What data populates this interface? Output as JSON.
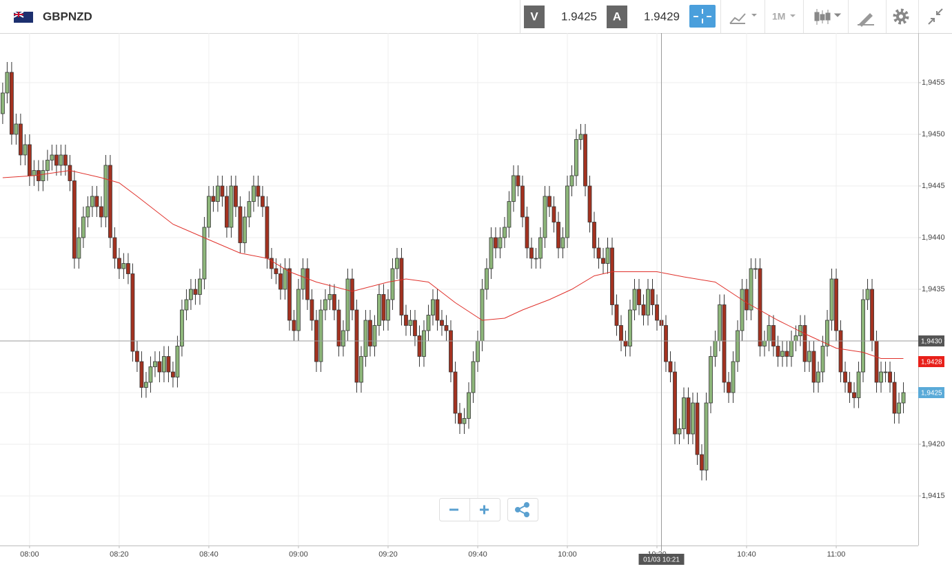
{
  "header": {
    "symbol": "GBPNZD",
    "bid": {
      "label": "V",
      "price": "1.9425"
    },
    "ask": {
      "label": "A",
      "price": "1.9429"
    },
    "timeframe": "1M"
  },
  "chart_data": {
    "type": "candlestick",
    "open": [
      1.9452,
      1.9454,
      1.9456,
      1.945,
      1.9451,
      1.9448,
      1.9449,
      1.9446,
      1.94465,
      1.94455,
      1.94465,
      1.94475,
      1.9448,
      1.9447,
      1.9448,
      1.9447,
      1.94455,
      1.9438,
      1.944,
      1.9442,
      1.9443,
      1.9444,
      1.9443,
      1.9442,
      1.9447,
      1.944,
      1.9438,
      1.9437,
      1.94375,
      1.94365,
      1.9429,
      1.9428,
      1.94255,
      1.9426,
      1.94275,
      1.9428,
      1.9427,
      1.94285,
      1.9427,
      1.94265,
      1.94295,
      1.9433,
      1.9434,
      1.9435,
      1.94345,
      1.9436,
      1.9441,
      1.9444,
      1.94435,
      1.9445,
      1.9444,
      1.9441,
      1.9445,
      1.9443,
      1.94395,
      1.9442,
      1.94435,
      1.9445,
      1.9444,
      1.9443,
      1.9438,
      1.9437,
      1.94365,
      1.9435,
      1.9437,
      1.9432,
      1.9431,
      1.9435,
      1.9437,
      1.9434,
      1.9432,
      1.9428,
      1.9433,
      1.9434,
      1.94345,
      1.9433,
      1.94295,
      1.9431,
      1.9436,
      1.9433,
      1.9426,
      1.94285,
      1.9432,
      1.94295,
      1.94315,
      1.94345,
      1.9432,
      1.9434,
      1.9437,
      1.9438,
      1.94325,
      1.94315,
      1.9432,
      1.94305,
      1.94285,
      1.9431,
      1.94325,
      1.9434,
      1.9432,
      1.94315,
      1.9431,
      1.9427,
      1.9423,
      1.9422,
      1.94225,
      1.9425,
      1.9428,
      1.943,
      1.9435,
      1.9437,
      1.944,
      1.9439,
      1.944,
      1.9441,
      1.94435,
      1.9446,
      1.9445,
      1.9442,
      1.9439,
      1.9438,
      1.9438,
      1.944,
      1.9444,
      1.9443,
      1.94415,
      1.9439,
      1.944,
      1.9445,
      1.9446,
      1.94495,
      1.945,
      1.9445,
      1.94415,
      1.9439,
      1.9438,
      1.94375,
      1.9439,
      1.94335,
      1.94315,
      1.943,
      1.94295,
      1.9433,
      1.9435,
      1.94335,
      1.94325,
      1.9435,
      1.94335,
      1.9432,
      1.94315,
      1.9428,
      1.9427,
      1.9421,
      1.94215,
      1.94245,
      1.9421,
      1.9424,
      1.9419,
      1.94175,
      1.9424,
      1.94285,
      1.943,
      1.94335,
      1.9426,
      1.9425,
      1.9428,
      1.9431,
      1.9435,
      1.9433,
      1.9437,
      1.9437,
      1.94295,
      1.943,
      1.94315,
      1.94295,
      1.94285,
      1.9429,
      1.94285,
      1.943,
      1.94305,
      1.94315,
      1.9428,
      1.9429,
      1.9426,
      1.9427,
      1.94295,
      1.9432,
      1.9436,
      1.9431,
      1.9427,
      1.9426,
      1.9425,
      1.94245,
      1.9427,
      1.9434,
      1.9435,
      1.943,
      1.9426,
      1.9427,
      1.9427,
      1.9426,
      1.9423,
      1.9424
    ],
    "high": [
      1.9455,
      1.9457,
      1.9457,
      1.9452,
      1.9452,
      1.945,
      1.945,
      1.94475,
      1.94475,
      1.94475,
      1.94485,
      1.9449,
      1.9449,
      1.9449,
      1.9449,
      1.9448,
      1.94465,
      1.9441,
      1.9443,
      1.9444,
      1.9445,
      1.9445,
      1.9444,
      1.9448,
      1.9448,
      1.9441,
      1.9439,
      1.94385,
      1.94385,
      1.94375,
      1.943,
      1.9429,
      1.9427,
      1.94285,
      1.9429,
      1.9429,
      1.94295,
      1.94295,
      1.9428,
      1.94305,
      1.9434,
      1.9435,
      1.9436,
      1.9436,
      1.9437,
      1.9442,
      1.9445,
      1.9445,
      1.9446,
      1.9446,
      1.9445,
      1.9446,
      1.9446,
      1.9444,
      1.9443,
      1.94445,
      1.9446,
      1.9446,
      1.9445,
      1.9444,
      1.9439,
      1.9438,
      1.94375,
      1.9438,
      1.9438,
      1.9433,
      1.9436,
      1.9438,
      1.9438,
      1.9435,
      1.9433,
      1.9434,
      1.9435,
      1.94355,
      1.94355,
      1.9434,
      1.9432,
      1.9437,
      1.9437,
      1.9434,
      1.94295,
      1.9433,
      1.9433,
      1.94325,
      1.94355,
      1.94355,
      1.9435,
      1.9438,
      1.9439,
      1.9439,
      1.94335,
      1.9433,
      1.9433,
      1.94315,
      1.9432,
      1.94335,
      1.9435,
      1.9435,
      1.9433,
      1.94325,
      1.9432,
      1.9428,
      1.9424,
      1.94235,
      1.9426,
      1.9429,
      1.9431,
      1.9436,
      1.9438,
      1.9441,
      1.9441,
      1.9441,
      1.9442,
      1.94445,
      1.9447,
      1.9447,
      1.9446,
      1.9443,
      1.944,
      1.9439,
      1.9441,
      1.9445,
      1.9445,
      1.9444,
      1.94425,
      1.9441,
      1.9446,
      1.9447,
      1.94505,
      1.9451,
      1.9451,
      1.9446,
      1.94425,
      1.944,
      1.9439,
      1.944,
      1.944,
      1.94345,
      1.94325,
      1.9431,
      1.9434,
      1.9436,
      1.9436,
      1.94345,
      1.9436,
      1.9436,
      1.94345,
      1.9433,
      1.94325,
      1.9429,
      1.9428,
      1.94225,
      1.94255,
      1.94255,
      1.9425,
      1.9425,
      1.942,
      1.9425,
      1.94295,
      1.9431,
      1.94345,
      1.94345,
      1.9427,
      1.9429,
      1.9432,
      1.9436,
      1.9436,
      1.9438,
      1.9438,
      1.9438,
      1.9431,
      1.94325,
      1.94325,
      1.94305,
      1.943,
      1.943,
      1.9431,
      1.94315,
      1.94325,
      1.94325,
      1.943,
      1.943,
      1.9428,
      1.94305,
      1.9433,
      1.9437,
      1.9437,
      1.9432,
      1.9428,
      1.9427,
      1.9426,
      1.9428,
      1.9435,
      1.9436,
      1.9436,
      1.9431,
      1.9428,
      1.9428,
      1.9428,
      1.9427,
      1.9425,
      1.9426
    ],
    "low": [
      1.9451,
      1.9453,
      1.9449,
      1.9449,
      1.9447,
      1.9447,
      1.9445,
      1.9445,
      1.94445,
      1.94445,
      1.94455,
      1.94465,
      1.9446,
      1.9446,
      1.9446,
      1.94445,
      1.9437,
      1.9437,
      1.9439,
      1.9441,
      1.9442,
      1.9442,
      1.9441,
      1.9441,
      1.9439,
      1.9437,
      1.9436,
      1.9436,
      1.94355,
      1.9428,
      1.9427,
      1.94245,
      1.94245,
      1.9425,
      1.94265,
      1.9426,
      1.9426,
      1.9426,
      1.94255,
      1.94255,
      1.94285,
      1.9432,
      1.9433,
      1.94335,
      1.94335,
      1.9435,
      1.944,
      1.94425,
      1.94425,
      1.9443,
      1.944,
      1.944,
      1.9442,
      1.94385,
      1.94385,
      1.9441,
      1.94425,
      1.9443,
      1.9442,
      1.9437,
      1.9436,
      1.94355,
      1.9434,
      1.9434,
      1.9431,
      1.943,
      1.943,
      1.9434,
      1.9433,
      1.9431,
      1.9427,
      1.9427,
      1.9432,
      1.9433,
      1.9432,
      1.94285,
      1.94285,
      1.943,
      1.9432,
      1.9425,
      1.9425,
      1.94275,
      1.94285,
      1.94285,
      1.94305,
      1.9431,
      1.9431,
      1.9433,
      1.9436,
      1.94315,
      1.94305,
      1.94305,
      1.94295,
      1.94275,
      1.94275,
      1.943,
      1.94315,
      1.9431,
      1.94305,
      1.943,
      1.9426,
      1.9422,
      1.9421,
      1.9421,
      1.94215,
      1.9424,
      1.9427,
      1.9429,
      1.9434,
      1.9436,
      1.9438,
      1.9438,
      1.9439,
      1.944,
      1.94425,
      1.9444,
      1.9441,
      1.9438,
      1.9437,
      1.9437,
      1.9437,
      1.9439,
      1.9442,
      1.94405,
      1.9438,
      1.9438,
      1.9439,
      1.9444,
      1.9445,
      1.94485,
      1.9444,
      1.94405,
      1.9438,
      1.9437,
      1.94365,
      1.94365,
      1.94325,
      1.94305,
      1.9429,
      1.94285,
      1.94285,
      1.9432,
      1.94325,
      1.94315,
      1.94315,
      1.94325,
      1.9431,
      1.94305,
      1.9427,
      1.9426,
      1.942,
      1.942,
      1.94205,
      1.942,
      1.942,
      1.9418,
      1.94165,
      1.94165,
      1.9423,
      1.94275,
      1.9429,
      1.9425,
      1.9424,
      1.9424,
      1.9427,
      1.943,
      1.9432,
      1.9432,
      1.9436,
      1.94285,
      1.94285,
      1.9429,
      1.94285,
      1.94275,
      1.94275,
      1.94275,
      1.94275,
      1.9429,
      1.94295,
      1.9427,
      1.9427,
      1.9425,
      1.9425,
      1.9426,
      1.94285,
      1.9431,
      1.943,
      1.9426,
      1.9425,
      1.9424,
      1.94235,
      1.94235,
      1.9426,
      1.9433,
      1.9429,
      1.9425,
      1.9425,
      1.9426,
      1.9425,
      1.9422,
      1.9422,
      1.9423
    ],
    "close": [
      1.9454,
      1.9456,
      1.945,
      1.9451,
      1.9448,
      1.9449,
      1.9446,
      1.94465,
      1.94455,
      1.94465,
      1.94475,
      1.9448,
      1.9447,
      1.9448,
      1.9447,
      1.94455,
      1.9438,
      1.944,
      1.9442,
      1.9443,
      1.9444,
      1.9443,
      1.9442,
      1.9447,
      1.944,
      1.9438,
      1.9437,
      1.94375,
      1.94365,
      1.9429,
      1.9428,
      1.94255,
      1.9426,
      1.94275,
      1.9428,
      1.9427,
      1.94285,
      1.9427,
      1.94265,
      1.94295,
      1.9433,
      1.9434,
      1.9435,
      1.94345,
      1.9436,
      1.9441,
      1.9444,
      1.94435,
      1.9445,
      1.9444,
      1.9441,
      1.9445,
      1.9443,
      1.94395,
      1.9442,
      1.94435,
      1.9445,
      1.9444,
      1.9443,
      1.9438,
      1.9437,
      1.94365,
      1.9435,
      1.9437,
      1.9432,
      1.9431,
      1.9435,
      1.9437,
      1.9434,
      1.9432,
      1.9428,
      1.9433,
      1.9434,
      1.94345,
      1.9433,
      1.94295,
      1.9431,
      1.9436,
      1.9433,
      1.9426,
      1.94285,
      1.9432,
      1.94295,
      1.94315,
      1.94345,
      1.9432,
      1.9434,
      1.9437,
      1.9438,
      1.94325,
      1.94315,
      1.9432,
      1.94305,
      1.94285,
      1.9431,
      1.94325,
      1.9434,
      1.9432,
      1.94315,
      1.9431,
      1.9427,
      1.9423,
      1.9422,
      1.94225,
      1.9425,
      1.9428,
      1.943,
      1.9435,
      1.9437,
      1.944,
      1.9439,
      1.944,
      1.9441,
      1.94435,
      1.9446,
      1.9445,
      1.9442,
      1.9439,
      1.9438,
      1.9438,
      1.944,
      1.9444,
      1.9443,
      1.94415,
      1.9439,
      1.944,
      1.9445,
      1.9446,
      1.94495,
      1.945,
      1.9445,
      1.94415,
      1.9439,
      1.9438,
      1.94375,
      1.9439,
      1.94335,
      1.94315,
      1.943,
      1.94295,
      1.9433,
      1.9435,
      1.94335,
      1.94325,
      1.9435,
      1.94335,
      1.9432,
      1.94315,
      1.9428,
      1.9427,
      1.9421,
      1.94215,
      1.94245,
      1.9421,
      1.9424,
      1.9419,
      1.94175,
      1.9424,
      1.94285,
      1.943,
      1.94335,
      1.9426,
      1.9425,
      1.9428,
      1.9431,
      1.9435,
      1.9433,
      1.9437,
      1.9437,
      1.94295,
      1.943,
      1.94315,
      1.94295,
      1.94285,
      1.9429,
      1.94285,
      1.943,
      1.94305,
      1.94315,
      1.9428,
      1.9429,
      1.9426,
      1.9427,
      1.94295,
      1.9432,
      1.9436,
      1.9431,
      1.9427,
      1.9426,
      1.9425,
      1.94245,
      1.9427,
      1.9434,
      1.9435,
      1.943,
      1.9426,
      1.9427,
      1.9427,
      1.9426,
      1.9423,
      1.9424,
      1.9425
    ],
    "colors": {
      "up": "#8db67a",
      "down": "#a33220"
    },
    "moving_average": {
      "color": "#e0302a",
      "x": [
        0,
        7,
        15,
        22,
        26,
        30,
        38,
        46,
        53,
        59,
        64,
        70,
        78,
        86,
        90,
        95,
        101,
        107,
        112,
        116,
        122,
        127,
        132,
        136,
        146,
        152,
        159,
        166,
        173,
        179,
        186,
        192,
        196,
        201
      ],
      "values": [
        1.94458,
        1.9446,
        1.94465,
        1.94458,
        1.94453,
        1.9444,
        1.94413,
        1.94398,
        1.94385,
        1.9438,
        1.94367,
        1.94357,
        1.94348,
        1.94357,
        1.9436,
        1.94357,
        1.94337,
        1.9432,
        1.94322,
        1.9433,
        1.9434,
        1.9435,
        1.94363,
        1.94367,
        1.94367,
        1.94362,
        1.94357,
        1.94337,
        1.9432,
        1.94307,
        1.94293,
        1.94289,
        1.94283,
        1.94283
      ]
    },
    "xlim": [
      -0.6,
      204.3
    ],
    "xticks": [
      {
        "value": 6,
        "label": "08:00"
      },
      {
        "value": 26,
        "label": "08:20"
      },
      {
        "value": 46,
        "label": "08:40"
      },
      {
        "value": 66,
        "label": "09:00"
      },
      {
        "value": 86,
        "label": "09:20"
      },
      {
        "value": 106,
        "label": "09:40"
      },
      {
        "value": 126,
        "label": "10:00"
      },
      {
        "value": 146,
        "label": "10:20"
      },
      {
        "value": 166,
        "label": "10:40"
      },
      {
        "value": 186,
        "label": "11:00"
      }
    ],
    "ylim": [
      1.94102,
      1.94598
    ],
    "yticks": [
      {
        "value": 1.9415,
        "label": "1,9415"
      },
      {
        "value": 1.942,
        "label": "1,9420"
      },
      {
        "value": 1.9425,
        "label": "1,9425"
      },
      {
        "value": 1.943,
        "label": "1,9430"
      },
      {
        "value": 1.9435,
        "label": "1,9435"
      },
      {
        "value": 1.944,
        "label": "1,9440"
      },
      {
        "value": 1.9445,
        "label": "1,9445"
      },
      {
        "value": 1.945,
        "label": "1,9450"
      },
      {
        "value": 1.9455,
        "label": "1,9455"
      }
    ],
    "grid": true,
    "crosshair": {
      "x": {
        "value": 147,
        "label": "01/03 10:21"
      },
      "y": {
        "value": 1.943,
        "label": "1,9430"
      }
    },
    "price_markers": [
      {
        "value": 1.9428,
        "label": "1,9428",
        "color": "#e8201a"
      },
      {
        "value": 1.9425,
        "label": "1,9425",
        "color": "#5aaad8"
      }
    ]
  }
}
